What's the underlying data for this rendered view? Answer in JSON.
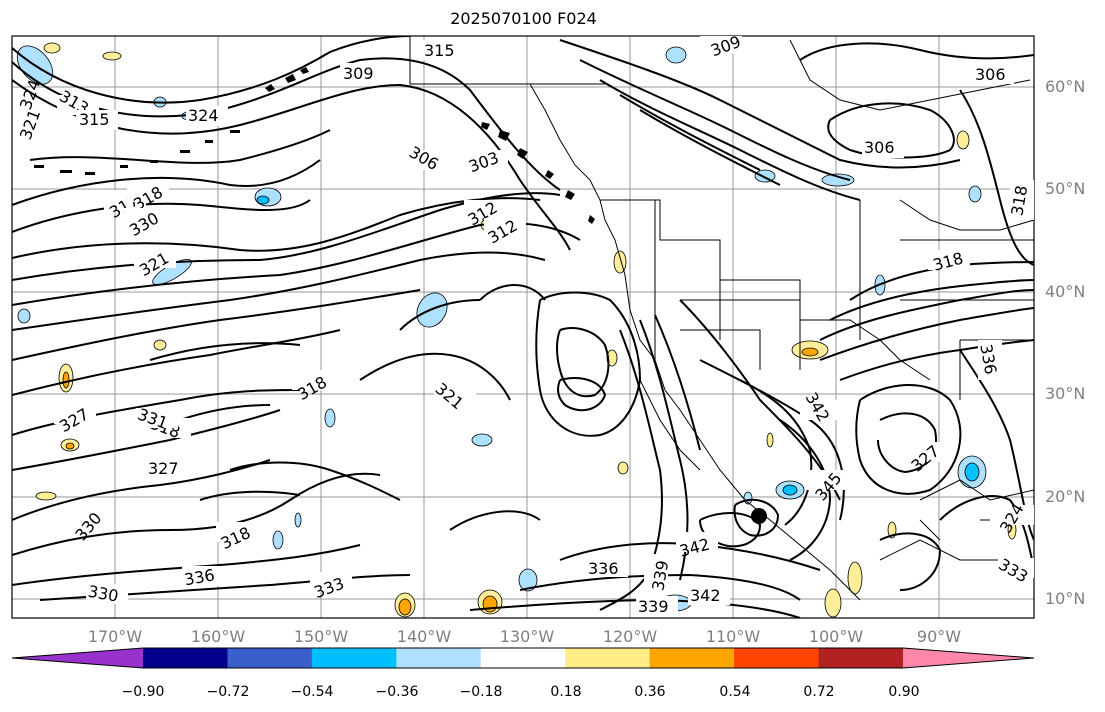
{
  "title": "2025070100 F024",
  "map": {
    "lat_ticks": [
      "60°N",
      "50°N",
      "40°N",
      "30°N",
      "20°N",
      "10°N"
    ],
    "lon_ticks": [
      "170°W",
      "160°W",
      "150°W",
      "140°W",
      "130°W",
      "120°W",
      "110°W",
      "100°W",
      "90°W"
    ],
    "contour_labels": [
      "315",
      "309",
      "306",
      "306",
      "303",
      "312",
      "312",
      "324",
      "313",
      "315",
      "321",
      "324",
      "317",
      "318",
      "330",
      "321",
      "318",
      "321",
      "327",
      "318",
      "331",
      "327",
      "330",
      "318",
      "336",
      "330",
      "333",
      "336",
      "339",
      "342",
      "342",
      "339",
      "342",
      "345",
      "318",
      "306",
      "336",
      "327",
      "333",
      "318",
      "324",
      "309"
    ],
    "colors": {
      "positive_light": "#ffee99",
      "positive_mid": "#ffa500",
      "negative_light": "#aee0ff",
      "negative_mid": "#00bfff",
      "contour": "#000000",
      "grid": "#999999"
    }
  },
  "colorbar": {
    "ticks": [
      "−0.90",
      "−0.72",
      "−0.54",
      "−0.36",
      "−0.18",
      "0.18",
      "0.36",
      "0.54",
      "0.72",
      "0.90"
    ],
    "colors": [
      "#9932cc",
      "#00008b",
      "#3a5fcd",
      "#00bfff",
      "#aee0ff",
      "#ffffff",
      "#ffee88",
      "#ffa500",
      "#ff4500",
      "#b22222",
      "#ff88aa"
    ]
  }
}
